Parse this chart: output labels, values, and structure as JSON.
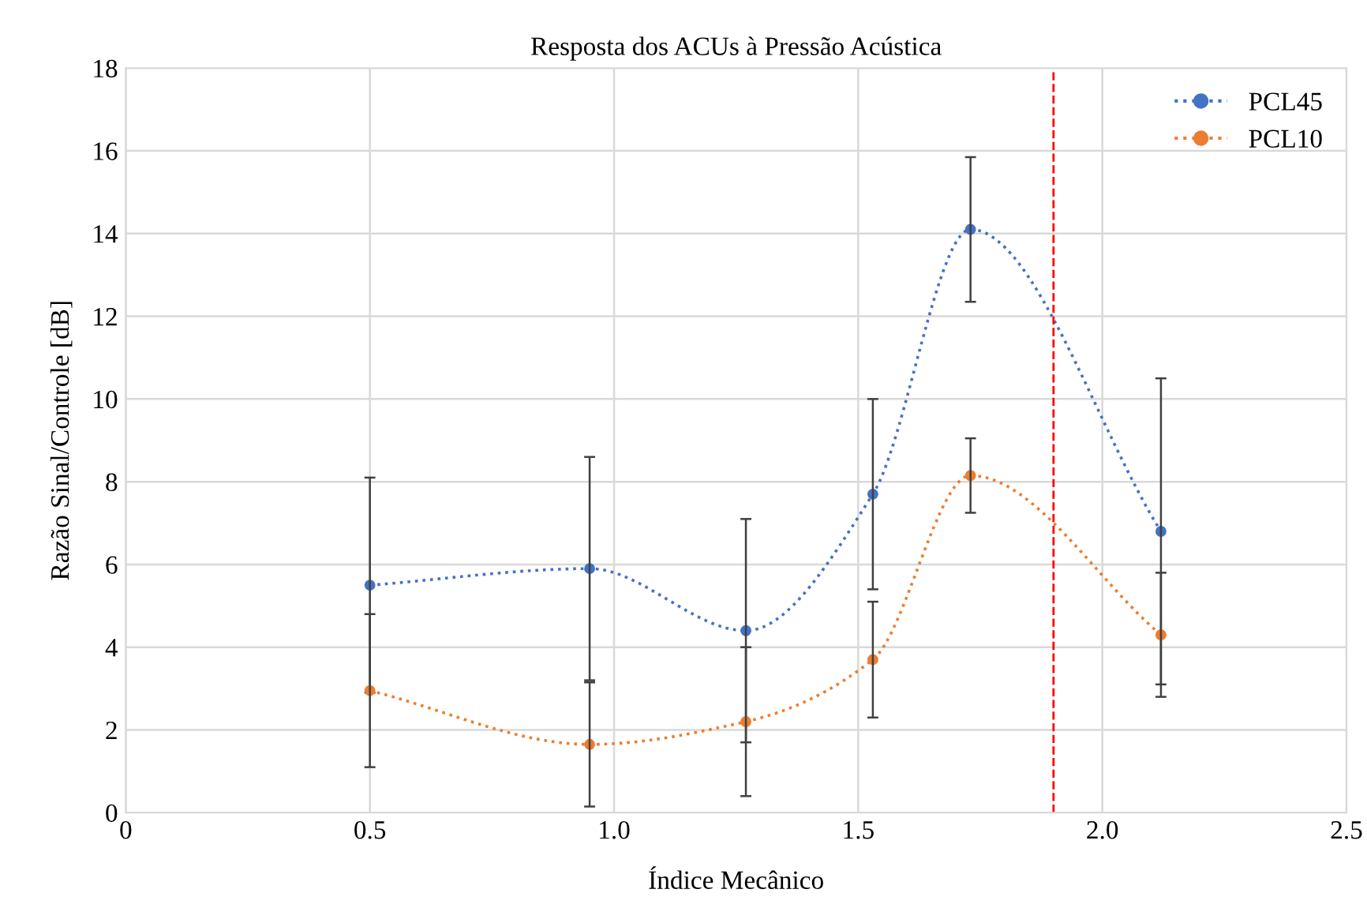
{
  "chart_data": {
    "type": "line",
    "title": "Resposta dos ACUs à Pressão Acústica",
    "xlabel": "Índice Mecânico",
    "ylabel": "Razão Sinal/Controle [dB]",
    "x": [
      0.5,
      0.95,
      1.27,
      1.53,
      1.73,
      2.12
    ],
    "series": [
      {
        "name": "PCL45",
        "color": "#4472c4",
        "values": [
          5.5,
          5.9,
          4.4,
          7.7,
          14.1,
          6.8
        ],
        "errors": [
          2.6,
          2.7,
          2.7,
          2.3,
          1.75,
          3.7
        ]
      },
      {
        "name": "PCL10",
        "color": "#ed7d31",
        "values": [
          2.95,
          1.65,
          2.2,
          3.7,
          8.15,
          4.3
        ],
        "errors": [
          1.85,
          1.5,
          1.8,
          1.4,
          0.9,
          1.5
        ]
      }
    ],
    "xlim": [
      0,
      2.5
    ],
    "xticks": [
      0,
      {
        "value": 0.5,
        "label": "0.5"
      },
      {
        "value": 1.0,
        "label": "1.0"
      },
      {
        "value": 1.5,
        "label": "1.5"
      },
      {
        "value": 2.0,
        "label": "2.0"
      },
      {
        "value": 2.5,
        "label": "2.5"
      }
    ],
    "ylim": [
      0,
      18
    ],
    "yticks": [
      0,
      2,
      4,
      6,
      8,
      10,
      12,
      14,
      16,
      18
    ],
    "ref_lines": [
      {
        "axis": "x",
        "value": 1.9,
        "color": "#ff0000",
        "line_style": "dashed"
      }
    ],
    "grid": true,
    "legend": "top right",
    "marker": "circle",
    "line_style": "dotted"
  }
}
